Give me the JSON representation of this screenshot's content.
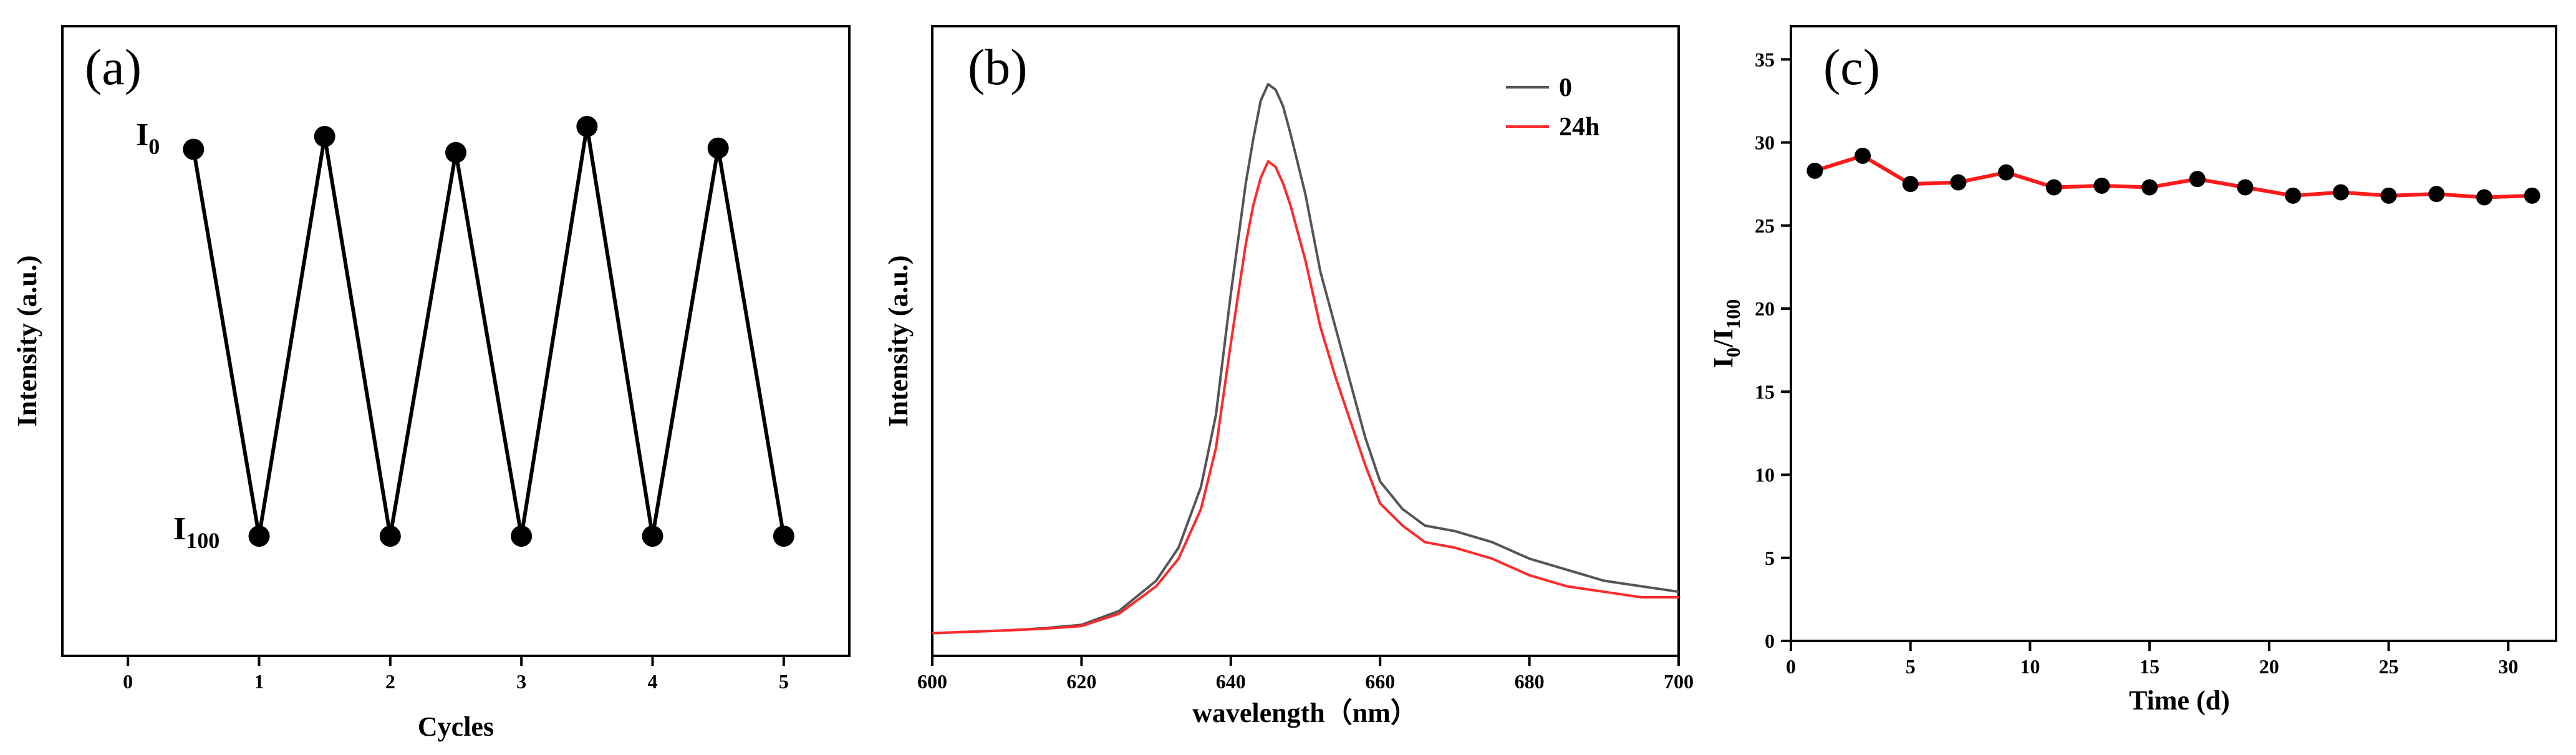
{
  "chart_data": [
    {
      "panel": "(a)",
      "type": "line",
      "xlabel": "Cycles",
      "ylabel": "Intensity (a.u.)",
      "xlim": [
        -0.5,
        5.5
      ],
      "xticks": [
        "0",
        "1",
        "2",
        "3",
        "4",
        "5"
      ],
      "level_labels": {
        "high_main": "I",
        "high_sub": "0",
        "low_main": "I",
        "low_sub": "100"
      },
      "series": [
        {
          "name": "Intensity",
          "color": "#000000",
          "x": [
            0.5,
            1,
            1.5,
            2,
            2.5,
            3,
            3.5,
            4,
            4.5,
            5
          ],
          "y": [
            0.965,
            0.0,
            0.997,
            0.0,
            0.957,
            0.0,
            1.022,
            0.0,
            0.968,
            0.0
          ]
        }
      ]
    },
    {
      "panel": "(b)",
      "type": "line",
      "xlabel": "wavelength（nm）",
      "ylabel": "Intensity (a.u.)",
      "xlim": [
        600,
        700
      ],
      "xticks": [
        "600",
        "620",
        "640",
        "660",
        "680",
        "700"
      ],
      "legend": {
        "position": "top-right"
      },
      "series": [
        {
          "name": "0",
          "color": "#555555",
          "x": [
            600,
            610,
            615,
            620,
            625,
            630,
            633,
            636,
            638,
            640,
            642,
            643,
            644,
            645,
            646,
            647,
            648,
            650,
            652,
            654,
            656,
            658,
            660,
            663,
            666,
            670,
            675,
            680,
            685,
            690,
            695,
            700
          ],
          "y": [
            0.005,
            0.01,
            0.014,
            0.02,
            0.045,
            0.1,
            0.16,
            0.27,
            0.4,
            0.62,
            0.82,
            0.9,
            0.97,
            1.0,
            0.99,
            0.96,
            0.91,
            0.8,
            0.66,
            0.56,
            0.46,
            0.36,
            0.28,
            0.23,
            0.2,
            0.19,
            0.17,
            0.14,
            0.12,
            0.1,
            0.09,
            0.08
          ]
        },
        {
          "name": "24h",
          "color": "#ff2a2a",
          "x": [
            600,
            610,
            615,
            620,
            625,
            630,
            633,
            636,
            638,
            640,
            642,
            643,
            644,
            645,
            646,
            647,
            648,
            650,
            652,
            654,
            656,
            658,
            660,
            663,
            666,
            670,
            675,
            680,
            685,
            690,
            695,
            700
          ],
          "y": [
            0.005,
            0.01,
            0.013,
            0.018,
            0.04,
            0.09,
            0.14,
            0.23,
            0.34,
            0.53,
            0.71,
            0.78,
            0.83,
            0.86,
            0.85,
            0.82,
            0.78,
            0.68,
            0.56,
            0.47,
            0.39,
            0.31,
            0.24,
            0.2,
            0.17,
            0.16,
            0.14,
            0.11,
            0.09,
            0.08,
            0.07,
            0.07
          ]
        }
      ]
    },
    {
      "panel": "(c)",
      "type": "line",
      "xlabel": "Time (d)",
      "ylabel_main": "I",
      "ylabel_sub1": "0",
      "ylabel_sep": "/I",
      "ylabel_sub2": "100",
      "xlim": [
        0,
        32
      ],
      "ylim": [
        0,
        37
      ],
      "xticks": [
        "0",
        "5",
        "10",
        "15",
        "20",
        "25",
        "30"
      ],
      "yticks": [
        "0",
        "5",
        "10",
        "15",
        "20",
        "25",
        "30",
        "35"
      ],
      "series": [
        {
          "name": "I0/I100",
          "color": "#ff1a1a",
          "marker_color": "#000000",
          "x": [
            1,
            3,
            5,
            7,
            9,
            11,
            13,
            15,
            17,
            19,
            21,
            23,
            25,
            27,
            29,
            31
          ],
          "y": [
            28.3,
            29.2,
            27.5,
            27.6,
            28.2,
            27.3,
            27.4,
            27.3,
            27.8,
            27.3,
            26.8,
            27.0,
            26.8,
            26.9,
            26.7,
            26.8
          ]
        }
      ]
    }
  ]
}
